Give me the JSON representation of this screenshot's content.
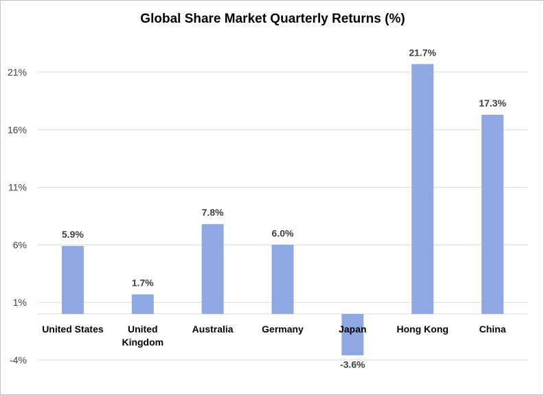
{
  "chart_data": {
    "type": "bar",
    "title": "Global Share Market Quarterly Returns (%)",
    "categories": [
      [
        "United States"
      ],
      [
        "United",
        "Kingdom"
      ],
      [
        "Australia"
      ],
      [
        "Germany"
      ],
      [
        "Japan"
      ],
      [
        "Hong Kong"
      ],
      [
        "China"
      ]
    ],
    "values": [
      5.9,
      1.7,
      7.8,
      6.0,
      -3.6,
      21.7,
      17.3
    ],
    "data_labels": [
      "5.9%",
      "1.7%",
      "7.8%",
      "6.0%",
      "-3.6%",
      "21.7%",
      "17.3%"
    ],
    "yticks": [
      -4,
      1,
      6,
      11,
      16,
      21
    ],
    "ytick_labels": [
      "-4%",
      "1%",
      "6%",
      "11%",
      "16%",
      "21%"
    ],
    "ylim": [
      -4,
      24
    ],
    "xlabel": "",
    "ylabel": "",
    "grid": true,
    "legend": false,
    "bar_color": "#8EA9E1",
    "grid_color": "#D9D9D9"
  }
}
